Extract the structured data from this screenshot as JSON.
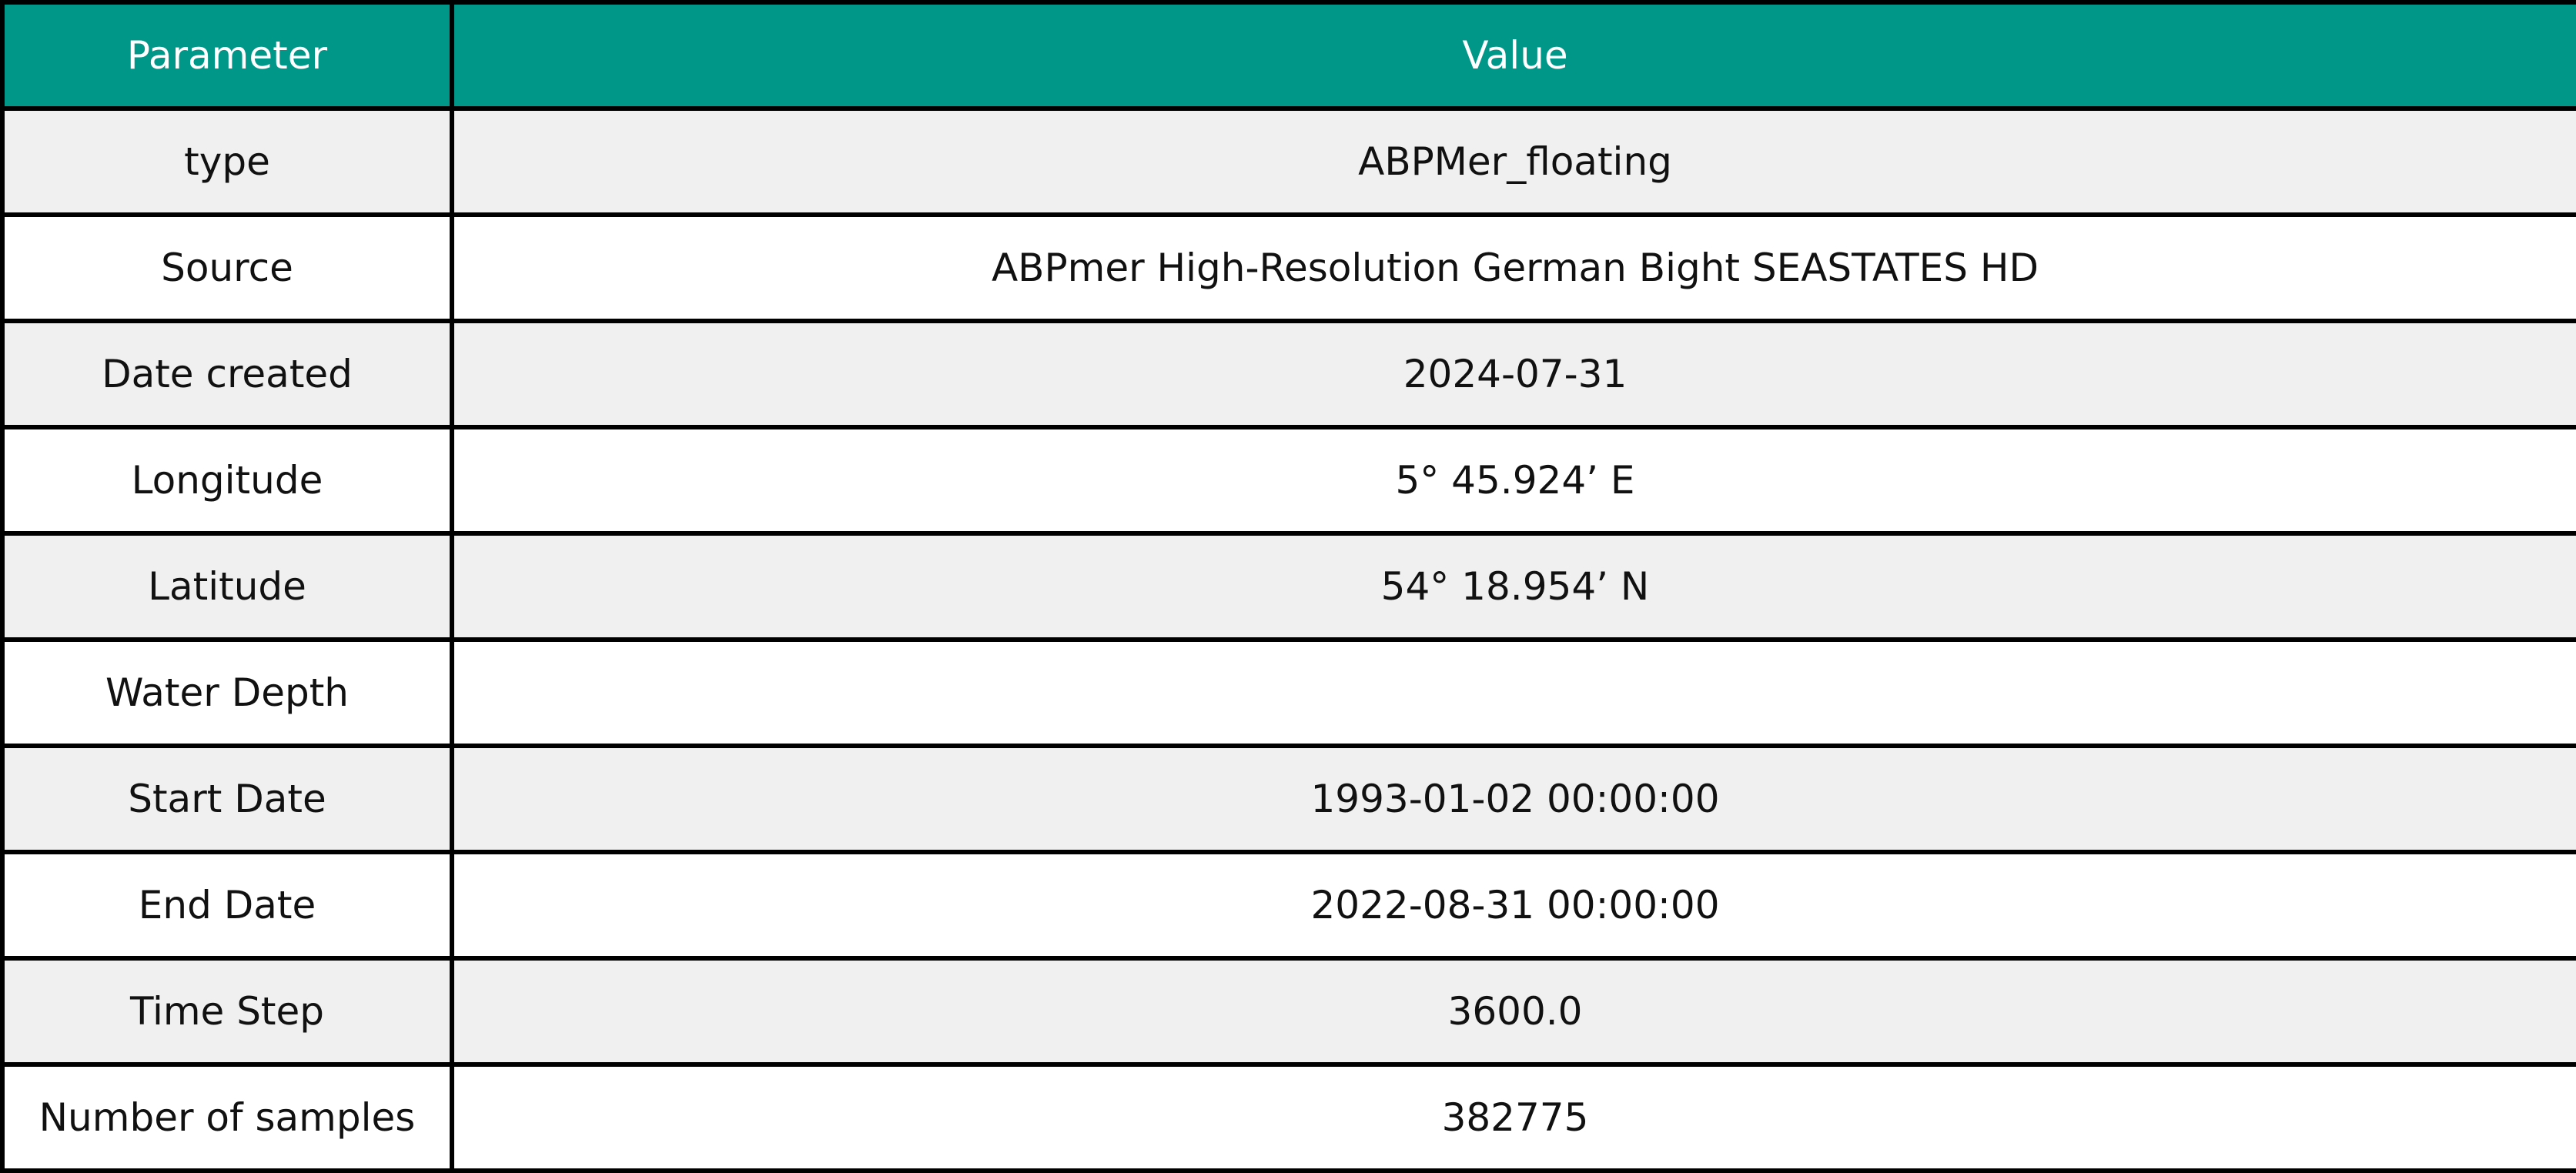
{
  "table": {
    "header": {
      "parameter": "Parameter",
      "value": "Value"
    },
    "rows": [
      {
        "parameter": "type",
        "value": "ABPMer_floating"
      },
      {
        "parameter": "Source",
        "value": "ABPmer High-Resolution German Bight SEASTATES HD"
      },
      {
        "parameter": "Date created",
        "value": "2024-07-31"
      },
      {
        "parameter": "Longitude",
        "value": "5° 45.924’ E"
      },
      {
        "parameter": "Latitude",
        "value": "54° 18.954’ N"
      },
      {
        "parameter": "Water Depth",
        "value": ""
      },
      {
        "parameter": "Start Date",
        "value": "1993-01-02 00:00:00"
      },
      {
        "parameter": "End Date",
        "value": "2022-08-31 00:00:00"
      },
      {
        "parameter": "Time Step",
        "value": "3600.0"
      },
      {
        "parameter": "Number of samples",
        "value": "382775"
      }
    ]
  },
  "colors": {
    "header_background": "#009688",
    "header_text": "#ffffff",
    "row_stripe": "#f0f0f0",
    "row_plain": "#ffffff",
    "grid": "#000000"
  }
}
